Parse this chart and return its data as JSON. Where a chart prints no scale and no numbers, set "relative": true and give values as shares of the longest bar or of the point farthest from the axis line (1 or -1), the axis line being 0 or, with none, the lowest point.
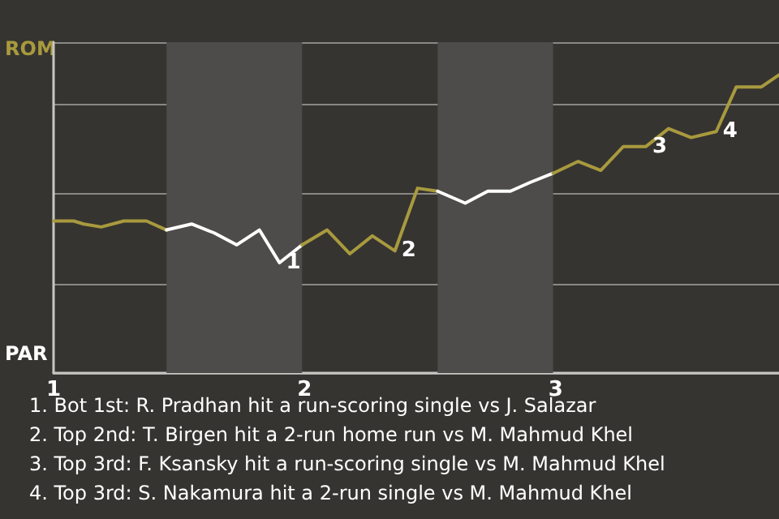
{
  "chart_data": {
    "type": "line",
    "relative": true,
    "series": [
      {
        "color": "#a89a3e",
        "x": [
          1,
          1.08,
          1.12,
          1.19,
          1.28,
          1.37,
          1.45
        ],
        "values": [
          0.51,
          0.51,
          0.5,
          0.49,
          0.51,
          0.51,
          0.48
        ]
      },
      {
        "color": "#ffffff",
        "x": [
          1.45,
          1.55,
          1.64,
          1.73,
          1.82,
          1.9,
          1.99
        ],
        "values": [
          0.48,
          0.5,
          0.47,
          0.43,
          0.48,
          0.37,
          0.43
        ]
      },
      {
        "color": "#a89a3e",
        "x": [
          1.99,
          2.09,
          2.18,
          2.27,
          2.36,
          2.45,
          2.53
        ],
        "values": [
          0.43,
          0.48,
          0.4,
          0.46,
          0.41,
          0.62,
          0.61
        ]
      },
      {
        "color": "#ffffff",
        "x": [
          2.53,
          2.64,
          2.73,
          2.82,
          2.9,
          2.99
        ],
        "values": [
          0.61,
          0.57,
          0.61,
          0.61,
          0.64,
          0.67
        ]
      },
      {
        "color": "#a89a3e",
        "x": [
          2.99,
          3.09,
          3.18,
          3.27,
          3.36,
          3.45,
          3.54,
          3.64,
          3.72,
          3.82,
          3.89
        ],
        "values": [
          0.67,
          0.71,
          0.68,
          0.76,
          0.76,
          0.82,
          0.79,
          0.81,
          0.96,
          0.96,
          1
        ]
      }
    ],
    "xlim": [
      1,
      3.89
    ],
    "xticks": [
      1,
      2,
      3
    ],
    "grid": "y",
    "marker": "none",
    "line_style": "solid",
    "bands": [
      {
        "axis": "x",
        "from": 1.45,
        "to": 1.99,
        "color": "#4d4c4a"
      },
      {
        "axis": "x",
        "from": 2.53,
        "to": 2.99,
        "color": "#4d4c4a"
      }
    ],
    "annotations": [
      "ROM",
      "PAR",
      {
        "text": "1",
        "x": 1.9,
        "y": 0.37
      },
      {
        "text": "2",
        "x": 2.36,
        "y": 0.41
      },
      {
        "text": "3",
        "x": 3.36,
        "y": 0.76
      },
      {
        "text": "4",
        "x": 3.64,
        "y": 0.81
      },
      "1. Bot 1st: R. Pradhan hit a run-scoring single vs J. Salazar",
      "2. Top 2nd: T. Birgen hit a 2-run home run vs M. Mahmud Khel",
      "3. Top 3rd: F. Ksansky hit a run-scoring single vs M. Mahmud Khel",
      "4. Top 3rd: S. Nakamura hit a 2-run single vs M. Mahmud Khel"
    ]
  }
}
